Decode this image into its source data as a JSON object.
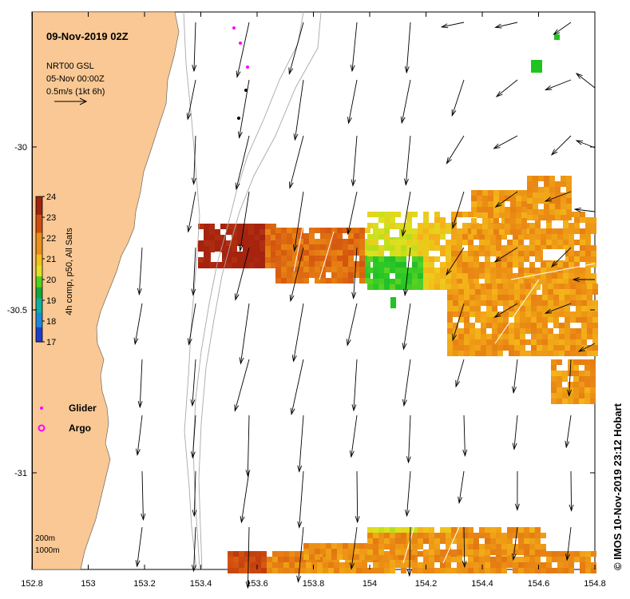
{
  "map": {
    "title": "09-Nov-2019 02Z",
    "product_lines": [
      "NRT00 GSL",
      "05-Nov 00:00Z",
      "0.5m/s (1kt 6h)"
    ],
    "credit": "© IMOS 10-Nov-2019 23:12 Hobart",
    "x_ticks": [
      "152.8",
      "153",
      "153.2",
      "153.4",
      "153.6",
      "153.8",
      "154",
      "154.2",
      "154.4",
      "154.6",
      "154.8"
    ],
    "y_ticks": [
      "-30",
      "-30.5",
      "-31"
    ],
    "colorbar": {
      "label": "4h comp, p50, All Sats",
      "ticks": [
        "24",
        "23",
        "22",
        "21",
        "20",
        "19",
        "18",
        "17"
      ]
    },
    "legend": [
      {
        "label": "Glider",
        "color": "#ff00ff",
        "marker": "dot"
      },
      {
        "label": "Argo",
        "color": "#ff00ff",
        "marker": "circle"
      }
    ],
    "isobaths": [
      "200m",
      "1000m"
    ],
    "colors": {
      "land": "#f9c894",
      "sst_warm": "#b22a10",
      "sst_mid": "#f2b418",
      "sst_cool": "#1fc41f"
    }
  }
}
